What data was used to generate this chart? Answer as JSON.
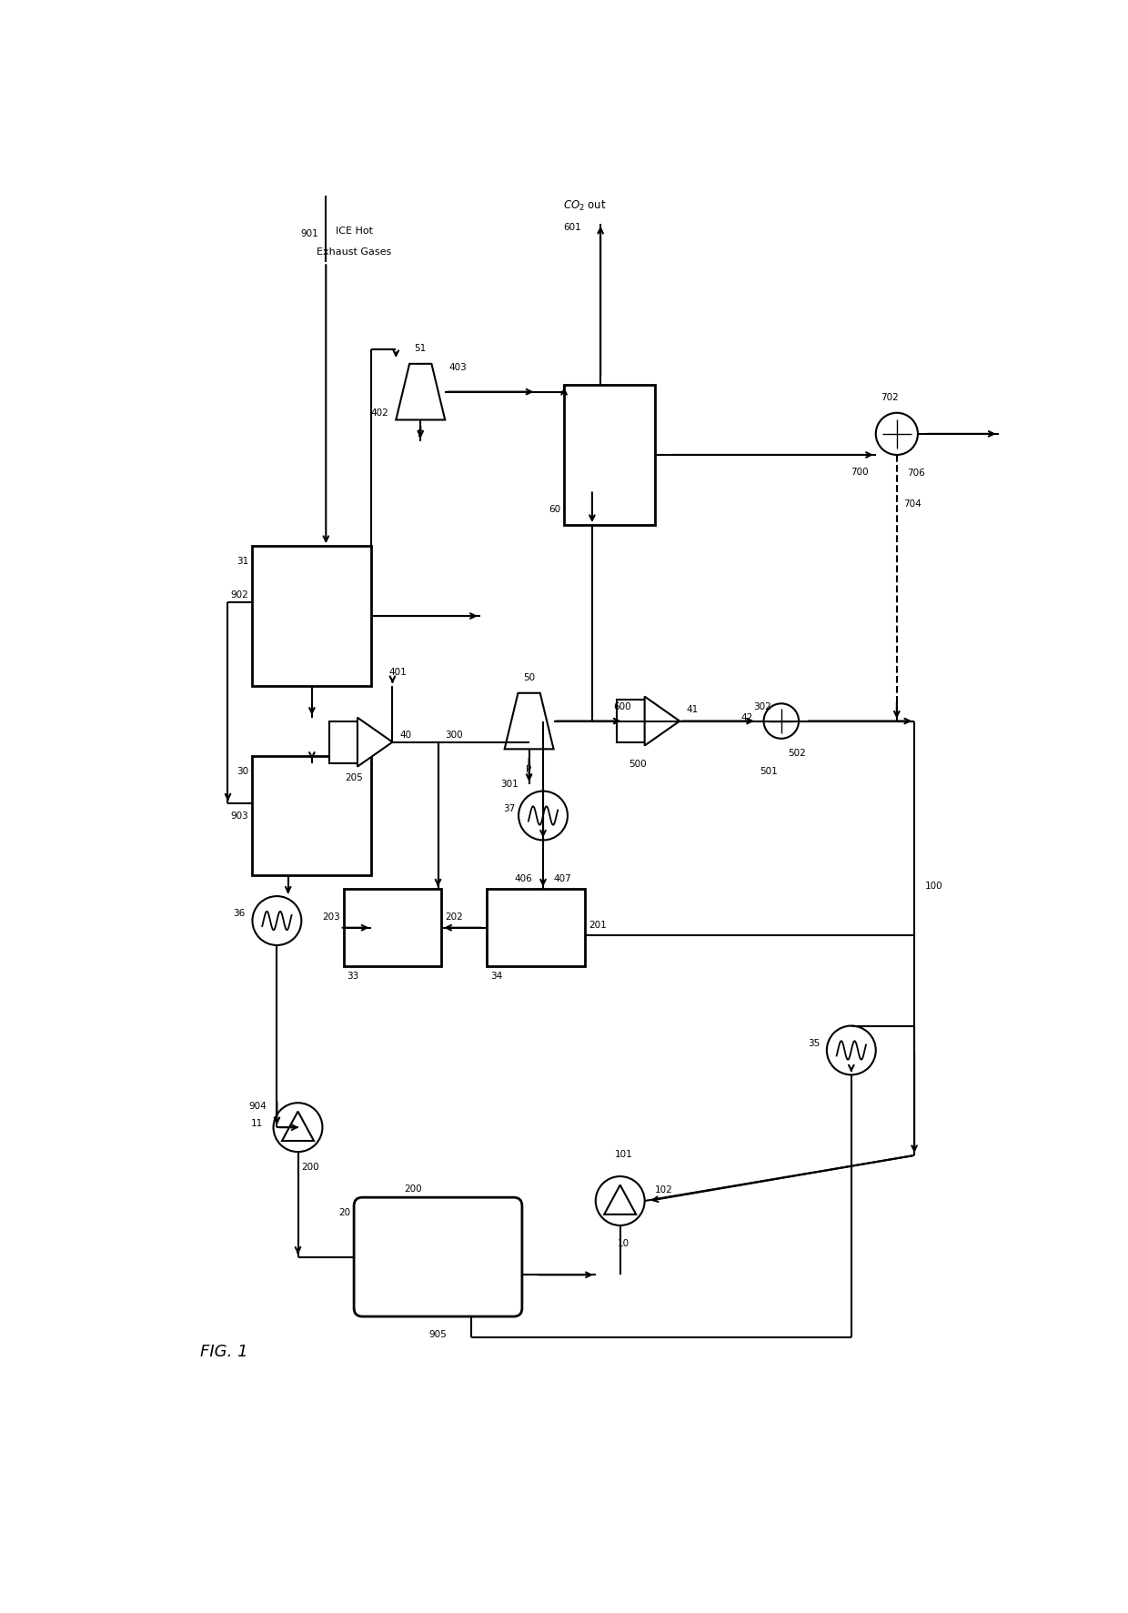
{
  "bg_color": "#ffffff",
  "line_color": "#000000",
  "figsize": [
    12.4,
    17.73
  ],
  "dpi": 100,
  "fig1_label": "FIG. 1",
  "co2_label": "CO₂ out",
  "exhaust_line1": "ICE Hot",
  "exhaust_line2": "Exhaust Gases"
}
